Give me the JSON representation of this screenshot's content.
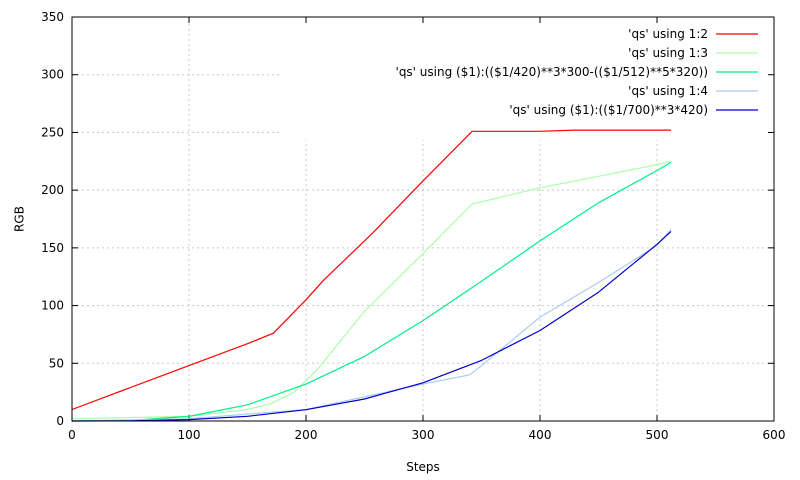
{
  "chart_data": {
    "type": "line",
    "title": "",
    "xlabel": "Steps",
    "ylabel": "RGB",
    "xlim": [
      0,
      600
    ],
    "ylim": [
      0,
      350
    ],
    "xticks": [
      0,
      100,
      200,
      300,
      400,
      500,
      600
    ],
    "yticks": [
      0,
      50,
      100,
      150,
      200,
      250,
      300,
      350
    ],
    "grid": true,
    "legend_position": "top-right",
    "series": [
      {
        "name": "'qs' using 1:2",
        "color": "#ff0000",
        "x": [
          0,
          50,
          100,
          150,
          172,
          200,
          215,
          250,
          260,
          300,
          342,
          400,
          430,
          500,
          512
        ],
        "y": [
          10,
          29,
          48,
          67,
          76,
          105,
          122,
          156,
          166,
          208,
          251,
          251,
          252,
          252,
          252
        ]
      },
      {
        "name": "'qs' using 1:3",
        "color": "#aaffaa",
        "x": [
          0,
          100,
          150,
          170,
          190,
          210,
          250,
          300,
          342,
          400,
          450,
          500,
          512
        ],
        "y": [
          2,
          4,
          10,
          15,
          25,
          45,
          95,
          145,
          188,
          202,
          212,
          222,
          225
        ]
      },
      {
        "name": "'qs' using ($1):(($1/420)**3*300-(($1/512)**5*320))",
        "color": "#00ee88",
        "x": [
          0,
          50,
          100,
          150,
          200,
          250,
          300,
          350,
          400,
          450,
          500,
          512
        ],
        "y": [
          0,
          0.5,
          4,
          14,
          32,
          56,
          87,
          121,
          156,
          189,
          217,
          224
        ]
      },
      {
        "name": "'qs' using 1:4",
        "color": "#aaccee",
        "x": [
          0,
          100,
          200,
          300,
          340,
          350,
          400,
          450,
          500,
          512
        ],
        "y": [
          0,
          2,
          10,
          32,
          40,
          48,
          90,
          120,
          152,
          166
        ]
      },
      {
        "name": "'qs' using ($1):(($1/700)**3*420)",
        "color": "#0000cc",
        "x": [
          0,
          50,
          100,
          150,
          200,
          250,
          300,
          350,
          400,
          450,
          500,
          512
        ],
        "y": [
          0,
          0.2,
          1.2,
          4.1,
          9.8,
          19.1,
          33.1,
          52.5,
          78.4,
          111.6,
          153.1,
          164.3
        ]
      }
    ]
  }
}
